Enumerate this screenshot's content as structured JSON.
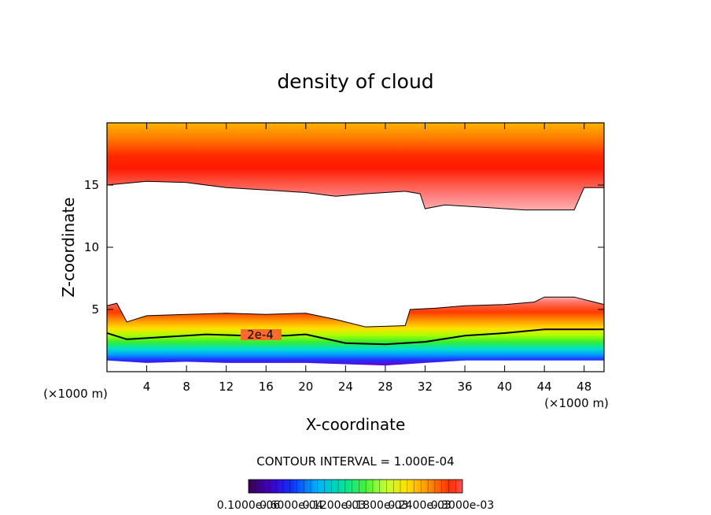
{
  "chart_data": {
    "type": "contour",
    "title": "density of cloud",
    "xlabel": "X-coordinate",
    "ylabel": "Z-coordinate",
    "x_unit_left": "(×1000 m)",
    "x_unit_right": "(×1000 m)",
    "xlim": [
      0,
      50
    ],
    "ylim": [
      0,
      20
    ],
    "x_ticks": [
      4,
      8,
      12,
      16,
      20,
      24,
      28,
      32,
      36,
      40,
      44,
      48
    ],
    "y_ticks": [
      5,
      10,
      15
    ],
    "contour_interval_text": "CONTOUR INTERVAL = 1.000E-04",
    "contour_label": "2e-4",
    "colorbar_labels": [
      "0.1000e-06",
      "0.6000e-04",
      "0.1200e-03",
      "0.1800e-03",
      "0.2400e-03",
      "0.3000e-03"
    ],
    "upper_layer_bottom_km": [
      [
        0,
        15.0
      ],
      [
        4,
        15.3
      ],
      [
        8,
        15.2
      ],
      [
        12,
        14.8
      ],
      [
        16,
        14.6
      ],
      [
        20,
        14.4
      ],
      [
        23,
        14.1
      ],
      [
        26,
        14.3
      ],
      [
        30,
        14.5
      ],
      [
        31.5,
        14.3
      ],
      [
        32,
        13.1
      ],
      [
        34,
        13.4
      ],
      [
        38,
        13.2
      ],
      [
        42,
        13.0
      ],
      [
        47,
        13.0
      ],
      [
        48,
        14.8
      ],
      [
        50,
        14.8
      ]
    ],
    "lower_layer_top_km": [
      [
        0,
        5.3
      ],
      [
        1,
        5.5
      ],
      [
        2,
        4.0
      ],
      [
        4,
        4.5
      ],
      [
        8,
        4.6
      ],
      [
        12,
        4.7
      ],
      [
        16,
        4.6
      ],
      [
        20,
        4.7
      ],
      [
        23,
        4.2
      ],
      [
        26,
        3.6
      ],
      [
        30,
        3.7
      ],
      [
        30.5,
        5.0
      ],
      [
        33,
        5.1
      ],
      [
        36,
        5.3
      ],
      [
        40,
        5.4
      ],
      [
        43,
        5.6
      ],
      [
        44,
        6.0
      ],
      [
        47,
        6.0
      ],
      [
        50,
        5.4
      ]
    ],
    "contour_2e4_km": [
      [
        0,
        3.1
      ],
      [
        2,
        2.6
      ],
      [
        6,
        2.8
      ],
      [
        10,
        3.0
      ],
      [
        14,
        2.9
      ],
      [
        18,
        2.9
      ],
      [
        20,
        3.0
      ],
      [
        24,
        2.3
      ],
      [
        28,
        2.2
      ],
      [
        32,
        2.4
      ],
      [
        36,
        2.9
      ],
      [
        40,
        3.1
      ],
      [
        44,
        3.4
      ],
      [
        50,
        3.4
      ]
    ],
    "lower_layer_base_km": [
      [
        0,
        0.9
      ],
      [
        4,
        0.7
      ],
      [
        8,
        0.8
      ],
      [
        12,
        0.7
      ],
      [
        16,
        0.7
      ],
      [
        20,
        0.7
      ],
      [
        24,
        0.6
      ],
      [
        28,
        0.5
      ],
      [
        32,
        0.7
      ],
      [
        36,
        0.9
      ],
      [
        40,
        0.9
      ],
      [
        44,
        0.9
      ],
      [
        50,
        0.9
      ]
    ],
    "upper_layer_top_km": 20,
    "upper_layer_max_km": 17.0,
    "colors": {
      "violet": "#6a00c8",
      "blue": "#1a1aff",
      "cyan": "#00d6ff",
      "green": "#33ee33",
      "yellow": "#ffd000",
      "orange": "#ff9000",
      "red": "#ff2800"
    }
  }
}
